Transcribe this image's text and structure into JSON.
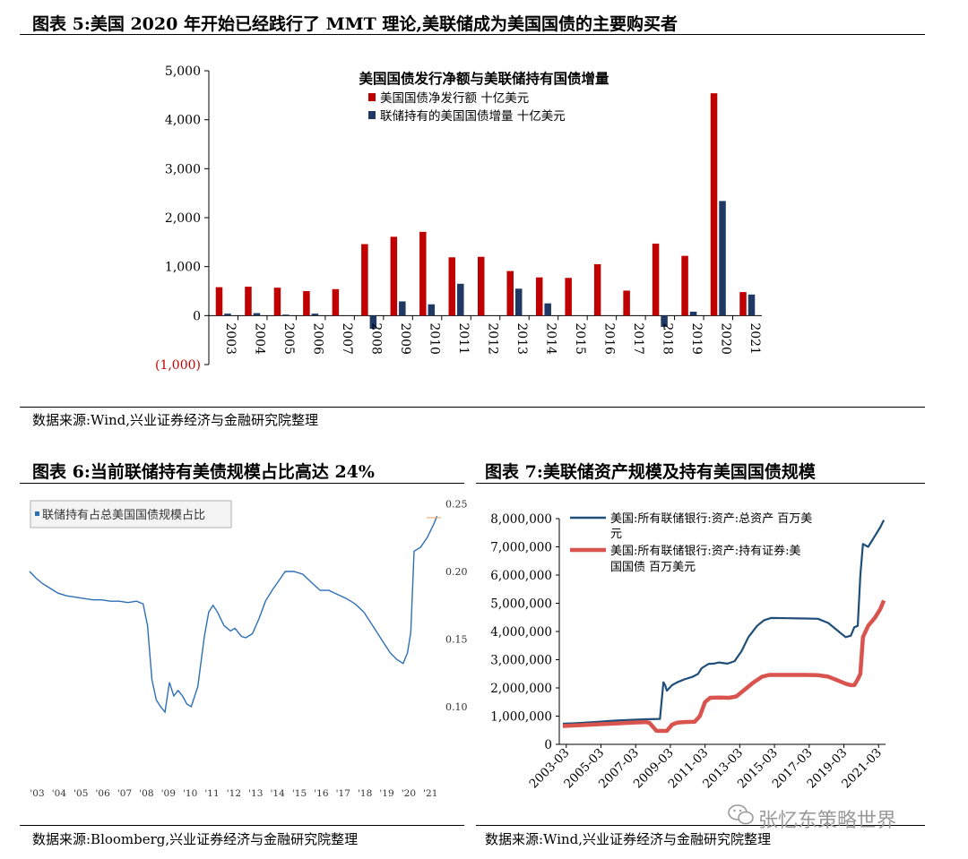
{
  "fig5": {
    "title": "图表 5:美国 2020 年开始已经践行了 MMT 理论,美联储成为美国国债的主要购买者",
    "source": "数据来源:Wind,兴业证券经济与金融研究院整理"
  },
  "fig6": {
    "title": "图表 6:当前联储持有美债规模占比高达 24%",
    "source": "数据来源:Bloomberg,兴业证券经济与金融研究院整理"
  },
  "fig7": {
    "title": "图表 7:美联储资产规模及持有美国国债规模",
    "source": "数据来源:Wind,兴业证券经济与金融研究院整理"
  },
  "watermark": {
    "text": "张忆东策略世界"
  },
  "colors": {
    "red": "#c00000",
    "navy": "#1f3864",
    "blue_line": "#2e6fb5",
    "line_navy": "#1f4e79",
    "line_red": "#d9534f"
  },
  "chart_data": [
    {
      "type": "bar",
      "title": "美国国债发行净额与美联储持有国债增量",
      "categories": [
        "2003",
        "2004",
        "2005",
        "2006",
        "2007",
        "2008",
        "2009",
        "2010",
        "2011",
        "2012",
        "2013",
        "2014",
        "2015",
        "2016",
        "2017",
        "2018",
        "2019",
        "2020",
        "2021"
      ],
      "series": [
        {
          "name": "美国国债净发行额 十亿美元",
          "color": "#c00000",
          "values": [
            580,
            590,
            570,
            500,
            540,
            1460,
            1610,
            1710,
            1190,
            1200,
            910,
            780,
            770,
            1050,
            510,
            1470,
            1220,
            4540,
            480
          ]
        },
        {
          "name": "联储持有的美国国债增量 十亿美元",
          "color": "#1f3864",
          "values": [
            40,
            50,
            20,
            40,
            0,
            -270,
            290,
            230,
            650,
            0,
            550,
            250,
            0,
            0,
            0,
            -230,
            80,
            2340,
            430
          ]
        }
      ],
      "ylim": [
        -1000,
        5000
      ],
      "yticks": [
        -1000,
        0,
        1000,
        2000,
        3000,
        4000,
        5000
      ],
      "ytick_labels": [
        "(1,000)",
        "0",
        "1,000",
        "2,000",
        "3,000",
        "4,000",
        "5,000"
      ],
      "grid": false,
      "legend": "top-center"
    },
    {
      "type": "line",
      "series": [
        {
          "name": "联储持有占总美国国债规模占比",
          "color": "#2e6fb5",
          "x": [
            2002.7,
            2003.0,
            2003.3,
            2003.6,
            2004.0,
            2004.4,
            2004.8,
            2005.2,
            2005.6,
            2006.0,
            2006.4,
            2006.8,
            2007.2,
            2007.6,
            2007.9,
            2008.1,
            2008.3,
            2008.5,
            2008.7,
            2008.9,
            2009.1,
            2009.3,
            2009.5,
            2009.7,
            2009.9,
            2010.1,
            2010.4,
            2010.7,
            2010.9,
            2011.1,
            2011.3,
            2011.6,
            2011.9,
            2012.1,
            2012.4,
            2012.6,
            2012.9,
            2013.2,
            2013.5,
            2013.8,
            2014.1,
            2014.4,
            2014.8,
            2015.2,
            2015.6,
            2016.0,
            2016.4,
            2016.8,
            2017.2,
            2017.6,
            2018.0,
            2018.4,
            2018.8,
            2019.2,
            2019.5,
            2019.8,
            2020.0,
            2020.15,
            2020.3,
            2020.6,
            2020.9,
            2021.2,
            2021.35
          ],
          "values": [
            0.2,
            0.195,
            0.191,
            0.188,
            0.184,
            0.182,
            0.181,
            0.18,
            0.179,
            0.179,
            0.178,
            0.178,
            0.177,
            0.178,
            0.176,
            0.16,
            0.12,
            0.105,
            0.1,
            0.096,
            0.118,
            0.108,
            0.112,
            0.108,
            0.102,
            0.1,
            0.115,
            0.152,
            0.17,
            0.175,
            0.17,
            0.16,
            0.156,
            0.158,
            0.152,
            0.151,
            0.154,
            0.165,
            0.178,
            0.186,
            0.193,
            0.2,
            0.2,
            0.198,
            0.192,
            0.186,
            0.186,
            0.183,
            0.18,
            0.176,
            0.17,
            0.16,
            0.15,
            0.14,
            0.135,
            0.132,
            0.14,
            0.155,
            0.215,
            0.218,
            0.225,
            0.235,
            0.241
          ]
        }
      ],
      "xticks": [
        "'03",
        "'04",
        "'05",
        "'06",
        "'07",
        "'08",
        "'09",
        "'10",
        "'11",
        "'12",
        "'13",
        "'14",
        "'15",
        "'16",
        "'17",
        "'18",
        "'19",
        "'20",
        "'21"
      ],
      "ylim": [
        0.08,
        0.25
      ],
      "yticks": [
        0.1,
        0.15,
        0.2,
        0.25
      ],
      "ytick_labels": [
        "0.10",
        "0.15",
        "0.20",
        "0.25"
      ],
      "yaxis_side": "right",
      "grid": false,
      "legend": "top-left"
    },
    {
      "type": "line",
      "series": [
        {
          "name": "美国:所有联储银行:资产:总资产 百万美元",
          "color": "#1f4e79",
          "x": [
            2003.0,
            2004.0,
            2005.0,
            2006.0,
            2007.0,
            2007.8,
            2008.6,
            2008.8,
            2008.9,
            2009.0,
            2009.3,
            2009.6,
            2010.0,
            2010.5,
            2010.8,
            2011.0,
            2011.4,
            2011.7,
            2012.0,
            2012.5,
            2012.9,
            2013.3,
            2013.7,
            2014.2,
            2014.6,
            2015.0,
            2016.0,
            2017.0,
            2017.7,
            2018.3,
            2018.9,
            2019.3,
            2019.6,
            2019.8,
            2020.0,
            2020.15,
            2020.3,
            2020.6,
            2021.0,
            2021.3,
            2021.5
          ],
          "values": [
            730000,
            760000,
            800000,
            840000,
            870000,
            890000,
            900000,
            2200000,
            2100000,
            1900000,
            2100000,
            2200000,
            2300000,
            2400000,
            2500000,
            2700000,
            2850000,
            2860000,
            2900000,
            2860000,
            2950000,
            3300000,
            3800000,
            4200000,
            4400000,
            4480000,
            4470000,
            4460000,
            4450000,
            4300000,
            4000000,
            3800000,
            3850000,
            4150000,
            4200000,
            6000000,
            7100000,
            7000000,
            7400000,
            7700000,
            7950000
          ]
        },
        {
          "name": "美国:所有联储银行:资产:持有证券:美国国债 百万美元",
          "color": "#d9534f",
          "x": [
            2003.0,
            2004.0,
            2005.0,
            2006.0,
            2007.0,
            2007.8,
            2008.0,
            2008.4,
            2008.8,
            2009.0,
            2009.3,
            2009.6,
            2010.0,
            2010.6,
            2010.9,
            2011.2,
            2011.5,
            2012.0,
            2012.6,
            2013.0,
            2013.5,
            2014.0,
            2014.5,
            2014.9,
            2015.5,
            2016.0,
            2017.0,
            2017.7,
            2018.3,
            2018.9,
            2019.3,
            2019.6,
            2019.8,
            2020.0,
            2020.15,
            2020.3,
            2020.6,
            2021.0,
            2021.3,
            2021.5
          ],
          "values": [
            650000,
            680000,
            710000,
            740000,
            770000,
            790000,
            760000,
            480000,
            475000,
            480000,
            700000,
            770000,
            790000,
            800000,
            1000000,
            1500000,
            1650000,
            1660000,
            1650000,
            1700000,
            1950000,
            2200000,
            2400000,
            2460000,
            2460000,
            2460000,
            2460000,
            2450000,
            2400000,
            2250000,
            2150000,
            2100000,
            2100000,
            2300000,
            2500000,
            3800000,
            4200000,
            4500000,
            4800000,
            5100000
          ]
        }
      ],
      "xticks": [
        "2003-03",
        "2005-03",
        "2007-03",
        "2009-03",
        "2011-03",
        "2013-03",
        "2015-03",
        "2017-03",
        "2019-03",
        "2021-03"
      ],
      "ylim": [
        0,
        8000000
      ],
      "yticks": [
        0,
        1000000,
        2000000,
        3000000,
        4000000,
        5000000,
        6000000,
        7000000,
        8000000
      ],
      "ytick_labels": [
        "0",
        "1,000,000",
        "2,000,000",
        "3,000,000",
        "4,000,000",
        "5,000,000",
        "6,000,000",
        "7,000,000",
        "8,000,000"
      ],
      "grid": false,
      "legend": "top-left"
    }
  ]
}
